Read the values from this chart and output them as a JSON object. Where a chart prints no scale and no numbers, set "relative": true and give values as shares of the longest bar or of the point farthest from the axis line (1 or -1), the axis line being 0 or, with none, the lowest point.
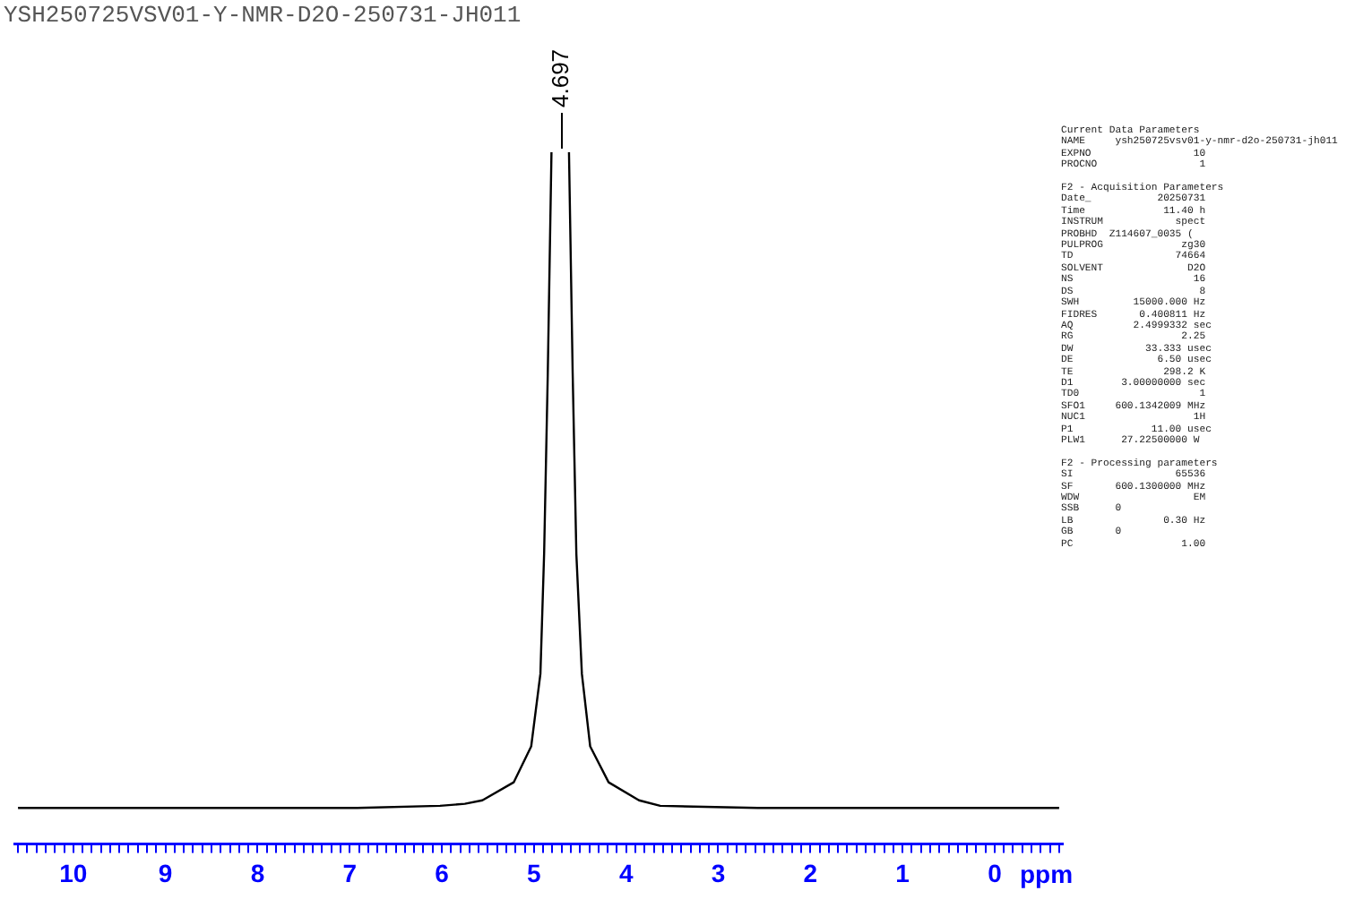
{
  "chart_data": {
    "type": "line",
    "title": "YSH250725VSV01-Y-NMR-D2O-250731-JH011",
    "xlabel": "ppm",
    "relative": true,
    "grid": false,
    "legend": false,
    "marker": "none",
    "line_style": "solid",
    "xlim": [
      10.64,
      -0.74
    ],
    "xticks": [
      {
        "value": 10.6,
        "label": null
      },
      {
        "value": 10.5,
        "label": null
      },
      {
        "value": 10.4,
        "label": null
      },
      {
        "value": 10.3,
        "label": null
      },
      {
        "value": 10.2,
        "label": null
      },
      {
        "value": 10.1,
        "label": null
      },
      10,
      {
        "value": 9.9,
        "label": null
      },
      {
        "value": 9.8,
        "label": null
      },
      {
        "value": 9.7,
        "label": null
      },
      {
        "value": 9.6,
        "label": null
      },
      {
        "value": 9.5,
        "label": null
      },
      {
        "value": 9.4,
        "label": null
      },
      {
        "value": 9.3,
        "label": null
      },
      {
        "value": 9.2,
        "label": null
      },
      {
        "value": 9.1,
        "label": null
      },
      9,
      {
        "value": 8.9,
        "label": null
      },
      {
        "value": 8.8,
        "label": null
      },
      {
        "value": 8.7,
        "label": null
      },
      {
        "value": 8.6,
        "label": null
      },
      {
        "value": 8.5,
        "label": null
      },
      {
        "value": 8.4,
        "label": null
      },
      {
        "value": 8.3,
        "label": null
      },
      {
        "value": 8.2,
        "label": null
      },
      {
        "value": 8.1,
        "label": null
      },
      8,
      {
        "value": 7.9,
        "label": null
      },
      {
        "value": 7.8,
        "label": null
      },
      {
        "value": 7.7,
        "label": null
      },
      {
        "value": 7.6,
        "label": null
      },
      {
        "value": 7.5,
        "label": null
      },
      {
        "value": 7.4,
        "label": null
      },
      {
        "value": 7.3,
        "label": null
      },
      {
        "value": 7.2,
        "label": null
      },
      {
        "value": 7.1,
        "label": null
      },
      7,
      {
        "value": 6.9,
        "label": null
      },
      {
        "value": 6.8,
        "label": null
      },
      {
        "value": 6.7,
        "label": null
      },
      {
        "value": 6.6,
        "label": null
      },
      {
        "value": 6.5,
        "label": null
      },
      {
        "value": 6.4,
        "label": null
      },
      {
        "value": 6.3,
        "label": null
      },
      {
        "value": 6.2,
        "label": null
      },
      {
        "value": 6.1,
        "label": null
      },
      6,
      {
        "value": 5.9,
        "label": null
      },
      {
        "value": 5.8,
        "label": null
      },
      {
        "value": 5.7,
        "label": null
      },
      {
        "value": 5.6,
        "label": null
      },
      {
        "value": 5.5,
        "label": null
      },
      {
        "value": 5.4,
        "label": null
      },
      {
        "value": 5.3,
        "label": null
      },
      {
        "value": 5.2,
        "label": null
      },
      {
        "value": 5.1,
        "label": null
      },
      5,
      {
        "value": 4.9,
        "label": null
      },
      {
        "value": 4.8,
        "label": null
      },
      {
        "value": 4.7,
        "label": null
      },
      {
        "value": 4.6,
        "label": null
      },
      {
        "value": 4.5,
        "label": null
      },
      {
        "value": 4.4,
        "label": null
      },
      {
        "value": 4.3,
        "label": null
      },
      {
        "value": 4.2,
        "label": null
      },
      {
        "value": 4.1,
        "label": null
      },
      4,
      {
        "value": 3.9,
        "label": null
      },
      {
        "value": 3.8,
        "label": null
      },
      {
        "value": 3.7,
        "label": null
      },
      {
        "value": 3.6,
        "label": null
      },
      {
        "value": 3.5,
        "label": null
      },
      {
        "value": 3.4,
        "label": null
      },
      {
        "value": 3.3,
        "label": null
      },
      {
        "value": 3.2,
        "label": null
      },
      {
        "value": 3.1,
        "label": null
      },
      3,
      {
        "value": 2.9,
        "label": null
      },
      {
        "value": 2.8,
        "label": null
      },
      {
        "value": 2.7,
        "label": null
      },
      {
        "value": 2.6,
        "label": null
      },
      {
        "value": 2.5,
        "label": null
      },
      {
        "value": 2.4,
        "label": null
      },
      {
        "value": 2.3,
        "label": null
      },
      {
        "value": 2.2,
        "label": null
      },
      {
        "value": 2.1,
        "label": null
      },
      2,
      {
        "value": 1.9,
        "label": null
      },
      {
        "value": 1.8,
        "label": null
      },
      {
        "value": 1.7,
        "label": null
      },
      {
        "value": 1.6,
        "label": null
      },
      {
        "value": 1.5,
        "label": null
      },
      {
        "value": 1.4,
        "label": null
      },
      {
        "value": 1.3,
        "label": null
      },
      {
        "value": 1.2,
        "label": null
      },
      {
        "value": 1.1,
        "label": null
      },
      1,
      {
        "value": 0.9,
        "label": null
      },
      {
        "value": 0.8,
        "label": null
      },
      {
        "value": 0.7,
        "label": null
      },
      {
        "value": 0.6,
        "label": null
      },
      {
        "value": 0.5,
        "label": null
      },
      {
        "value": 0.4,
        "label": null
      },
      {
        "value": 0.3,
        "label": null
      },
      {
        "value": 0.2,
        "label": null
      },
      {
        "value": 0.1,
        "label": null
      },
      0,
      {
        "value": -0.1,
        "label": null
      },
      {
        "value": -0.2,
        "label": null
      },
      {
        "value": -0.3,
        "label": null
      },
      {
        "value": -0.4,
        "label": null
      },
      {
        "value": -0.5,
        "label": null
      },
      {
        "value": -0.6,
        "label": null
      },
      {
        "value": -0.7,
        "label": null
      }
    ],
    "series": [
      {
        "color": "#000000",
        "x": [
          10.6,
          6.92,
          6.02,
          5.75,
          5.56,
          5.22,
          5.03,
          4.93,
          4.89,
          4.85,
          4.81,
          4.7,
          4.62,
          4.58,
          4.54,
          4.48,
          4.39,
          4.19,
          3.86,
          3.63,
          2.57,
          -0.7
        ],
        "values": [
          0.052,
          0.052,
          0.055,
          0.058,
          0.063,
          0.089,
          0.141,
          0.246,
          0.419,
          0.681,
          1.0,
          null,
          1.0,
          0.681,
          0.419,
          0.246,
          0.141,
          0.089,
          0.063,
          0.055,
          0.052,
          0.052
        ]
      }
    ],
    "annotations": [
      {
        "text": "4.697",
        "x": 4.697,
        "y": 1.0
      },
      "Current Data Parameters\nNAME     ysh250725vsv01-y-nmr-d2o-250731-jh011\nEXPNO                 10\nPROCNO                 1",
      "F2 - Acquisition Parameters\nDate_           20250731\nTime             11.40 h\nINSTRUM            spect\nPROBHD  Z114607_0035 (\nPULPROG             zg30\nTD                 74664\nSOLVENT              D2O\nNS                    16\nDS                     8\nSWH         15000.000 Hz\nFIDRES       0.400811 Hz\nAQ          2.4999332 sec\nRG                  2.25\nDW            33.333 usec\nDE              6.50 usec\nTE               298.2 K\nD1        3.00000000 sec\nTD0                    1\nSFO1     600.1342009 MHz\nNUC1                  1H\nP1             11.00 usec\nPLW1      27.22500000 W",
      "F2 - Processing parameters\nSI                 65536\nSF       600.1300000 MHz\nWDW                   EM\nSSB      0\nLB               0.30 Hz\nGB       0\nPC                  1.00"
    ]
  }
}
